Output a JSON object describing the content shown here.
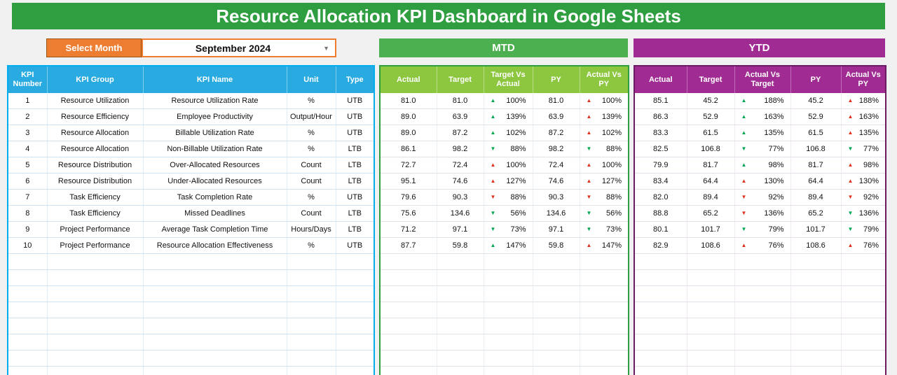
{
  "title": "Resource Allocation KPI Dashboard in Google Sheets",
  "controls": {
    "select_month_label": "Select Month",
    "selected_month": "September 2024"
  },
  "sections": {
    "mtd": "MTD",
    "ytd": "YTD"
  },
  "icons": {
    "up_arrow": "▲",
    "down_arrow": "▼",
    "dropdown_arrow": "▼"
  },
  "colors": {
    "title_bar_green": "#2f9e41",
    "mtd_banner_green": "#4caf50",
    "mtd_header_green": "#8dc63f",
    "ytd_purple": "#a02b93",
    "left_header_blue": "#29abe2",
    "select_month_orange": "#ed7d31",
    "positive_green": "#00a651",
    "negative_red": "#e0301e"
  },
  "table": {
    "left_headers": [
      "KPI Number",
      "KPI Group",
      "KPI Name",
      "Unit",
      "Type"
    ],
    "mtd_headers": [
      "Actual",
      "Target",
      "Target Vs Actual",
      "PY",
      "Actual Vs PY"
    ],
    "ytd_headers": [
      "Actual",
      "Target",
      "Actual Vs Target",
      "PY",
      "Actual Vs PY"
    ],
    "empty_row_count": 8,
    "rows": [
      {
        "kpi_number": "1",
        "kpi_group": "Resource Utilization",
        "kpi_name": "Resource Utilization Rate",
        "unit": "%",
        "type": "UTB",
        "mtd": {
          "actual": "81.0",
          "target": "81.0",
          "target_vs_actual": {
            "dir": "up",
            "color": "green",
            "value": "100%"
          },
          "py": "81.0",
          "actual_vs_py": {
            "dir": "up",
            "color": "red",
            "value": "100%"
          }
        },
        "ytd": {
          "actual": "85.1",
          "target": "45.2",
          "actual_vs_target": {
            "dir": "up",
            "color": "green",
            "value": "188%"
          },
          "py": "45.2",
          "actual_vs_py": {
            "dir": "up",
            "color": "red",
            "value": "188%"
          }
        }
      },
      {
        "kpi_number": "2",
        "kpi_group": "Resource Efficiency",
        "kpi_name": "Employee Productivity",
        "unit": "Output/Hour",
        "type": "UTB",
        "mtd": {
          "actual": "89.0",
          "target": "63.9",
          "target_vs_actual": {
            "dir": "up",
            "color": "green",
            "value": "139%"
          },
          "py": "63.9",
          "actual_vs_py": {
            "dir": "up",
            "color": "red",
            "value": "139%"
          }
        },
        "ytd": {
          "actual": "86.3",
          "target": "52.9",
          "actual_vs_target": {
            "dir": "up",
            "color": "green",
            "value": "163%"
          },
          "py": "52.9",
          "actual_vs_py": {
            "dir": "up",
            "color": "red",
            "value": "163%"
          }
        }
      },
      {
        "kpi_number": "3",
        "kpi_group": "Resource Allocation",
        "kpi_name": "Billable Utilization Rate",
        "unit": "%",
        "type": "UTB",
        "mtd": {
          "actual": "89.0",
          "target": "87.2",
          "target_vs_actual": {
            "dir": "up",
            "color": "green",
            "value": "102%"
          },
          "py": "87.2",
          "actual_vs_py": {
            "dir": "up",
            "color": "red",
            "value": "102%"
          }
        },
        "ytd": {
          "actual": "83.3",
          "target": "61.5",
          "actual_vs_target": {
            "dir": "up",
            "color": "green",
            "value": "135%"
          },
          "py": "61.5",
          "actual_vs_py": {
            "dir": "up",
            "color": "red",
            "value": "135%"
          }
        }
      },
      {
        "kpi_number": "4",
        "kpi_group": "Resource Allocation",
        "kpi_name": "Non-Billable Utilization Rate",
        "unit": "%",
        "type": "LTB",
        "mtd": {
          "actual": "86.1",
          "target": "98.2",
          "target_vs_actual": {
            "dir": "down",
            "color": "green",
            "value": "88%"
          },
          "py": "98.2",
          "actual_vs_py": {
            "dir": "down",
            "color": "green",
            "value": "88%"
          }
        },
        "ytd": {
          "actual": "82.5",
          "target": "106.8",
          "actual_vs_target": {
            "dir": "down",
            "color": "green",
            "value": "77%"
          },
          "py": "106.8",
          "actual_vs_py": {
            "dir": "down",
            "color": "green",
            "value": "77%"
          }
        }
      },
      {
        "kpi_number": "5",
        "kpi_group": "Resource Distribution",
        "kpi_name": "Over-Allocated Resources",
        "unit": "Count",
        "type": "LTB",
        "mtd": {
          "actual": "72.7",
          "target": "72.4",
          "target_vs_actual": {
            "dir": "up",
            "color": "red",
            "value": "100%"
          },
          "py": "72.4",
          "actual_vs_py": {
            "dir": "up",
            "color": "red",
            "value": "100%"
          }
        },
        "ytd": {
          "actual": "79.9",
          "target": "81.7",
          "actual_vs_target": {
            "dir": "up",
            "color": "green",
            "value": "98%"
          },
          "py": "81.7",
          "actual_vs_py": {
            "dir": "up",
            "color": "red",
            "value": "98%"
          }
        }
      },
      {
        "kpi_number": "6",
        "kpi_group": "Resource Distribution",
        "kpi_name": "Under-Allocated Resources",
        "unit": "Count",
        "type": "LTB",
        "mtd": {
          "actual": "95.1",
          "target": "74.6",
          "target_vs_actual": {
            "dir": "up",
            "color": "red",
            "value": "127%"
          },
          "py": "74.6",
          "actual_vs_py": {
            "dir": "up",
            "color": "red",
            "value": "127%"
          }
        },
        "ytd": {
          "actual": "83.4",
          "target": "64.4",
          "actual_vs_target": {
            "dir": "up",
            "color": "red",
            "value": "130%"
          },
          "py": "64.4",
          "actual_vs_py": {
            "dir": "up",
            "color": "red",
            "value": "130%"
          }
        }
      },
      {
        "kpi_number": "7",
        "kpi_group": "Task Efficiency",
        "kpi_name": "Task Completion Rate",
        "unit": "%",
        "type": "UTB",
        "mtd": {
          "actual": "79.6",
          "target": "90.3",
          "target_vs_actual": {
            "dir": "down",
            "color": "red",
            "value": "88%"
          },
          "py": "90.3",
          "actual_vs_py": {
            "dir": "down",
            "color": "red",
            "value": "88%"
          }
        },
        "ytd": {
          "actual": "82.0",
          "target": "89.4",
          "actual_vs_target": {
            "dir": "down",
            "color": "red",
            "value": "92%"
          },
          "py": "89.4",
          "actual_vs_py": {
            "dir": "down",
            "color": "red",
            "value": "92%"
          }
        }
      },
      {
        "kpi_number": "8",
        "kpi_group": "Task Efficiency",
        "kpi_name": "Missed Deadlines",
        "unit": "Count",
        "type": "LTB",
        "mtd": {
          "actual": "75.6",
          "target": "134.6",
          "target_vs_actual": {
            "dir": "down",
            "color": "green",
            "value": "56%"
          },
          "py": "134.6",
          "actual_vs_py": {
            "dir": "down",
            "color": "green",
            "value": "56%"
          }
        },
        "ytd": {
          "actual": "88.8",
          "target": "65.2",
          "actual_vs_target": {
            "dir": "down",
            "color": "red",
            "value": "136%"
          },
          "py": "65.2",
          "actual_vs_py": {
            "dir": "down",
            "color": "green",
            "value": "136%"
          }
        }
      },
      {
        "kpi_number": "9",
        "kpi_group": "Project Performance",
        "kpi_name": "Average Task Completion Time",
        "unit": "Hours/Days",
        "type": "LTB",
        "mtd": {
          "actual": "71.2",
          "target": "97.1",
          "target_vs_actual": {
            "dir": "down",
            "color": "green",
            "value": "73%"
          },
          "py": "97.1",
          "actual_vs_py": {
            "dir": "down",
            "color": "green",
            "value": "73%"
          }
        },
        "ytd": {
          "actual": "80.1",
          "target": "101.7",
          "actual_vs_target": {
            "dir": "down",
            "color": "green",
            "value": "79%"
          },
          "py": "101.7",
          "actual_vs_py": {
            "dir": "down",
            "color": "green",
            "value": "79%"
          }
        }
      },
      {
        "kpi_number": "10",
        "kpi_group": "Project Performance",
        "kpi_name": "Resource Allocation Effectiveness",
        "unit": "%",
        "type": "UTB",
        "mtd": {
          "actual": "87.7",
          "target": "59.8",
          "target_vs_actual": {
            "dir": "up",
            "color": "green",
            "value": "147%"
          },
          "py": "59.8",
          "actual_vs_py": {
            "dir": "up",
            "color": "red",
            "value": "147%"
          }
        },
        "ytd": {
          "actual": "82.9",
          "target": "108.6",
          "actual_vs_target": {
            "dir": "up",
            "color": "red",
            "value": "76%"
          },
          "py": "108.6",
          "actual_vs_py": {
            "dir": "up",
            "color": "red",
            "value": "76%"
          }
        }
      }
    ]
  }
}
